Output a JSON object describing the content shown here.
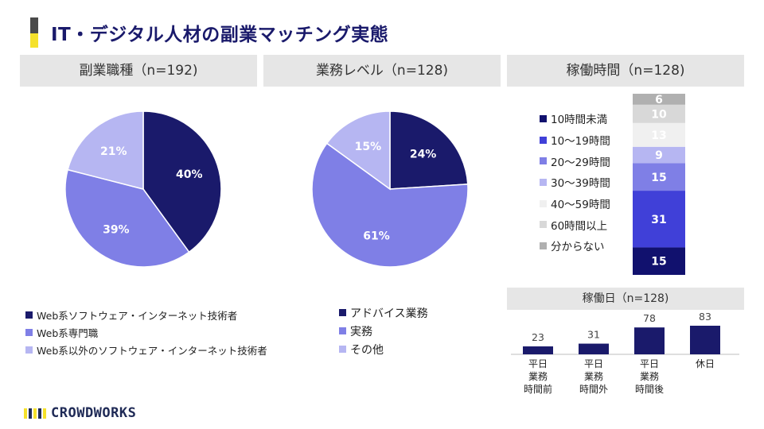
{
  "page_title": "IT・デジタル人材の副業マッチング実態",
  "logo_text": "CROWDWORKS",
  "colors": {
    "navy": "#1a1a6b",
    "blue": "#4040d8",
    "mid": "#7f7fe6",
    "light": "#b6b6f2",
    "pale": "#ededf7",
    "gray1": "#d8d8d8",
    "gray2": "#b0b0b0",
    "accent_yellow": "#f5e12b"
  },
  "chart_data": [
    {
      "type": "pie",
      "title": "副業職種（n=192)",
      "slices": [
        {
          "label": "Web系ソフトウェア・インターネット技術者",
          "value": 40,
          "display": "40%",
          "color": "#1a1a6b"
        },
        {
          "label": "Web系専門職",
          "value": 39,
          "display": "39%",
          "color": "#7f7fe6"
        },
        {
          "label": "Web系以外のソフトウェア・インターネット技術者",
          "value": 21,
          "display": "21%",
          "color": "#b6b6f2"
        }
      ]
    },
    {
      "type": "pie",
      "title": "業務レベル（n=128)",
      "slices": [
        {
          "label": "アドバイス業務",
          "value": 24,
          "display": "24%",
          "color": "#1a1a6b"
        },
        {
          "label": "実務",
          "value": 61,
          "display": "61%",
          "color": "#7f7fe6"
        },
        {
          "label": "その他",
          "value": 15,
          "display": "15%",
          "color": "#b6b6f2"
        }
      ]
    },
    {
      "type": "bar",
      "subtype": "stacked-100",
      "title": "稼働時間（n=128)",
      "segments": [
        {
          "label": "10時間未満",
          "value": 15,
          "color": "#11116e",
          "text_color": "#ffffff"
        },
        {
          "label": "10～19時間",
          "value": 31,
          "color": "#4040d8",
          "text_color": "#ffffff"
        },
        {
          "label": "20～29時間",
          "value": 15,
          "color": "#7f7fe6",
          "text_color": "#ffffff"
        },
        {
          "label": "30～39時間",
          "value": 9,
          "color": "#b6b6f2",
          "text_color": "#ffffff"
        },
        {
          "label": "40～59時間",
          "value": 13,
          "color": "#f0f0f0",
          "text_color": "#ffffff"
        },
        {
          "label": "60時間以上",
          "value": 10,
          "color": "#d8d8d8",
          "text_color": "#ffffff"
        },
        {
          "label": "分からない",
          "value": 6,
          "color": "#b0b0b0",
          "text_color": "#ffffff"
        }
      ]
    },
    {
      "type": "bar",
      "title": "稼働日（n=128)",
      "categories": [
        "平日\n業務\n時間前",
        "平日\n業務\n時間外",
        "平日\n業務\n時間後",
        "休日"
      ],
      "values": [
        23,
        31,
        78,
        83
      ],
      "color": "#1a1a6b",
      "ylim": [
        0,
        83
      ]
    }
  ]
}
